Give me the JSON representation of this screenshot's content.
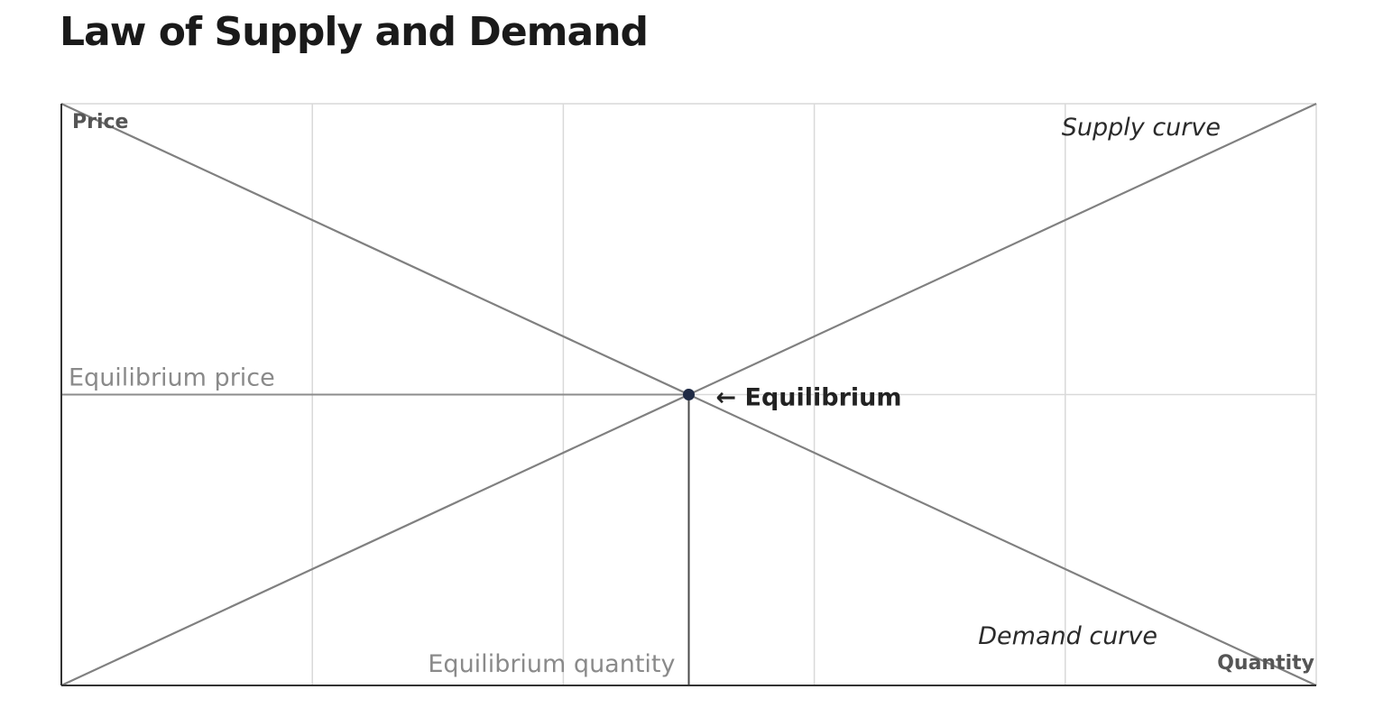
{
  "title": "Law of Supply and Demand",
  "chart_data": {
    "type": "line",
    "title": "Law of Supply and Demand",
    "xlabel": "Quantity",
    "ylabel": "Price",
    "xlim": [
      0,
      5
    ],
    "ylim": [
      0,
      2
    ],
    "grid": true,
    "x_gridlines": [
      1,
      2,
      3,
      4
    ],
    "y_gridlines": [
      1
    ],
    "series": [
      {
        "name": "Supply curve",
        "x": [
          0,
          5
        ],
        "y": [
          0,
          2
        ],
        "color": "#808080"
      },
      {
        "name": "Demand curve",
        "x": [
          0,
          5
        ],
        "y": [
          2,
          0
        ],
        "color": "#808080"
      }
    ],
    "equilibrium": {
      "x": 2.5,
      "y": 1,
      "label": "← Equilibrium",
      "price_label": "Equilibrium price",
      "quantity_label": "Equilibrium quantity",
      "color": "#1f2a44"
    }
  }
}
